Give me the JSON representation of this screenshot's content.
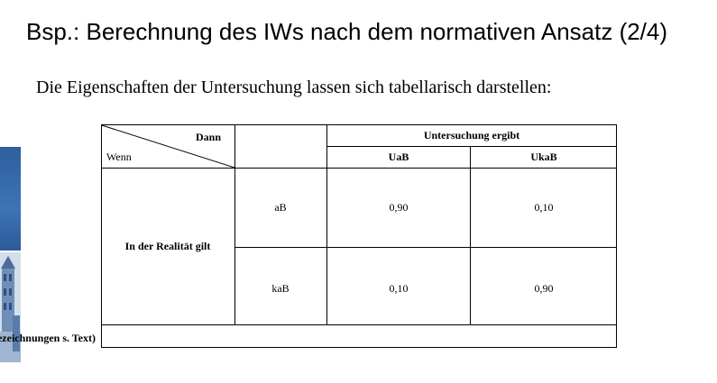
{
  "slide": {
    "title": "Bsp.: Berechnung des IWs nach dem normativen Ansatz (2/4)",
    "intro": "Die Eigenschaften der Untersuchung lassen sich tabellarisch darstellen:"
  },
  "table": {
    "corner_then": "Dann",
    "corner_if": "Wenn",
    "header_group": "Untersuchung ergibt",
    "col_uab": "UaB",
    "col_ukab": "UkaB",
    "row_group": "In der Realität gilt",
    "row_ab": "aB",
    "row_kab": "kaB",
    "v_ab_uab": "0,90",
    "v_ab_ukab": "0,10",
    "v_kab_uab": "0,10",
    "v_kab_ukab": "0,90",
    "footnote": "(zu Bezeichnungen s. Text)"
  }
}
